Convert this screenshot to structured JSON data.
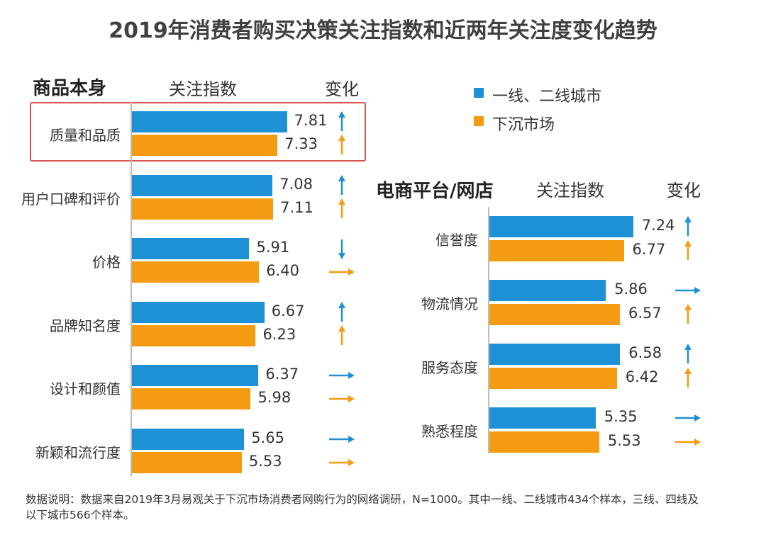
{
  "title": "2019年消费者购买决策关注指数和近两年关注度变化趋势",
  "legend": [
    {
      "name": "一线、二线城市",
      "color": "#1e90d6"
    },
    {
      "name": "下沉市场",
      "color": "#f59b11"
    }
  ],
  "chart_data": [
    {
      "type": "bar",
      "orientation": "horizontal",
      "title": "商品本身",
      "column_headers": [
        "关注指数",
        "变化"
      ],
      "highlighted_category": "质量和品质",
      "categories": [
        "质量和品质",
        "用户口碑和评价",
        "价格",
        "品牌知名度",
        "设计和颜值",
        "新颖和流行度"
      ],
      "series": [
        {
          "name": "一线、二线城市",
          "values": [
            7.81,
            7.08,
            5.91,
            6.67,
            6.37,
            5.65
          ],
          "change": [
            "up",
            "up",
            "down",
            "up",
            "flat",
            "flat"
          ]
        },
        {
          "name": "下沉市场",
          "values": [
            7.33,
            7.11,
            6.4,
            6.23,
            5.98,
            5.53
          ],
          "change": [
            "up",
            "up",
            "flat",
            "up",
            "flat",
            "flat"
          ]
        }
      ],
      "value_labels": [
        [
          "7.81",
          "7.08",
          "5.91",
          "6.67",
          "6.37",
          "5.65"
        ],
        [
          "7.33",
          "7.11",
          "6.40",
          "6.23",
          "5.98",
          "5.53"
        ]
      ]
    },
    {
      "type": "bar",
      "orientation": "horizontal",
      "title": "电商平台/网店",
      "column_headers": [
        "关注指数",
        "变化"
      ],
      "categories": [
        "信誉度",
        "物流情况",
        "服务态度",
        "熟悉程度"
      ],
      "series": [
        {
          "name": "一线、二线城市",
          "values": [
            7.24,
            5.86,
            6.58,
            5.35
          ],
          "change": [
            "up",
            "flat",
            "up",
            "flat"
          ]
        },
        {
          "name": "下沉市场",
          "values": [
            6.77,
            6.57,
            6.42,
            5.53
          ],
          "change": [
            "up",
            "up",
            "up",
            "flat"
          ]
        }
      ],
      "value_labels": [
        [
          "7.24",
          "5.86",
          "6.58",
          "5.35"
        ],
        [
          "6.77",
          "6.57",
          "6.42",
          "5.53"
        ]
      ]
    }
  ],
  "footnote": "数据说明：数据来自2019年3月易观关于下沉市场消费者网购行为的网络调研，N=1000。其中一线、二线城市434个样本，三线、四线及以下城市566个样本。"
}
